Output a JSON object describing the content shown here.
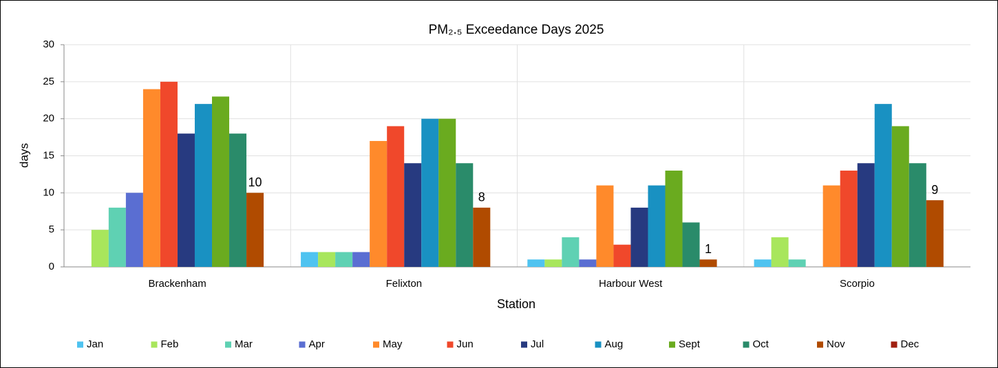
{
  "chart_data": {
    "type": "bar",
    "title": "PM₂.₅ Exceedance Days 2025",
    "x_label": "Station",
    "y_label": "days",
    "categories": [
      "Brackenham",
      "Felixton",
      "Harbour West",
      "Scorpio"
    ],
    "series": [
      {
        "name": "Jan",
        "color": "#4fc3f0",
        "values": [
          0,
          2,
          1,
          1
        ]
      },
      {
        "name": "Feb",
        "color": "#a8e65c",
        "values": [
          5,
          2,
          1,
          4
        ]
      },
      {
        "name": "Mar",
        "color": "#5fd1b3",
        "values": [
          8,
          2,
          4,
          1
        ]
      },
      {
        "name": "Apr",
        "color": "#5a6ed2",
        "values": [
          10,
          2,
          1,
          0
        ]
      },
      {
        "name": "May",
        "color": "#ff8a2b",
        "values": [
          24,
          17,
          11,
          11
        ]
      },
      {
        "name": "Jun",
        "color": "#f0482b",
        "values": [
          25,
          19,
          3,
          13
        ]
      },
      {
        "name": "Jul",
        "color": "#273a80",
        "values": [
          18,
          14,
          8,
          14
        ]
      },
      {
        "name": "Aug",
        "color": "#1991c2",
        "values": [
          22,
          20,
          11,
          22
        ]
      },
      {
        "name": "Sept",
        "color": "#6aab1f",
        "values": [
          23,
          20,
          13,
          19
        ]
      },
      {
        "name": "Oct",
        "color": "#2a8b6a",
        "values": [
          18,
          14,
          6,
          14
        ]
      },
      {
        "name": "Nov",
        "color": "#b04b00",
        "values": [
          10,
          8,
          1,
          9
        ],
        "data_labels": true
      },
      {
        "name": "Dec",
        "color": "#a01f10",
        "values": [
          0,
          0,
          0,
          0
        ]
      }
    ],
    "ylim": [
      0,
      30
    ],
    "yticks": [
      0,
      5,
      10,
      15,
      20,
      25,
      30
    ],
    "grid": true,
    "legend": "bottom"
  }
}
